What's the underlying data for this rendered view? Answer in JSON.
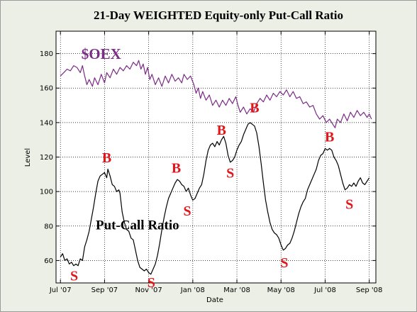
{
  "chart_data": {
    "type": "line",
    "title": "21-Day WEIGHTED Equity-only Put-Call Ratio",
    "xlabel": "Date",
    "ylabel": "Level",
    "ylim": [
      47,
      193
    ],
    "yticks": [
      60,
      80,
      100,
      120,
      140,
      160,
      180
    ],
    "grid": true,
    "xticks": [
      {
        "label": "Jul '07",
        "t": 0
      },
      {
        "label": "Sep '07",
        "t": 2
      },
      {
        "label": "Nov '07",
        "t": 4
      },
      {
        "label": "Jan '08",
        "t": 6
      },
      {
        "label": "Mar '08",
        "t": 8
      },
      {
        "label": "May '08",
        "t": 10
      },
      {
        "label": "Jul '08",
        "t": 12
      },
      {
        "label": "Sep '08",
        "t": 14
      }
    ],
    "xlim": [
      -0.2,
      14.3
    ],
    "series": [
      {
        "name": "$OEX",
        "color": "#7b2b86",
        "points": [
          [
            0,
            167
          ],
          [
            0.15,
            169
          ],
          [
            0.3,
            171
          ],
          [
            0.45,
            170
          ],
          [
            0.6,
            173
          ],
          [
            0.75,
            172
          ],
          [
            0.9,
            169
          ],
          [
            1.0,
            173
          ],
          [
            1.1,
            167
          ],
          [
            1.2,
            162
          ],
          [
            1.3,
            165
          ],
          [
            1.45,
            161
          ],
          [
            1.55,
            166
          ],
          [
            1.7,
            162
          ],
          [
            1.85,
            168
          ],
          [
            2.0,
            163
          ],
          [
            2.1,
            169
          ],
          [
            2.25,
            166
          ],
          [
            2.4,
            171
          ],
          [
            2.55,
            168
          ],
          [
            2.7,
            172
          ],
          [
            2.85,
            170
          ],
          [
            3.0,
            173
          ],
          [
            3.15,
            171
          ],
          [
            3.3,
            175
          ],
          [
            3.45,
            173
          ],
          [
            3.55,
            176
          ],
          [
            3.65,
            171
          ],
          [
            3.75,
            174
          ],
          [
            3.85,
            168
          ],
          [
            3.95,
            172
          ],
          [
            4.05,
            165
          ],
          [
            4.15,
            168
          ],
          [
            4.3,
            162
          ],
          [
            4.45,
            166
          ],
          [
            4.6,
            161
          ],
          [
            4.75,
            167
          ],
          [
            4.9,
            163
          ],
          [
            5.05,
            168
          ],
          [
            5.2,
            164
          ],
          [
            5.35,
            166
          ],
          [
            5.5,
            163
          ],
          [
            5.6,
            168
          ],
          [
            5.75,
            165
          ],
          [
            5.9,
            167
          ],
          [
            6.05,
            162
          ],
          [
            6.15,
            157
          ],
          [
            6.25,
            160
          ],
          [
            6.35,
            154
          ],
          [
            6.45,
            158
          ],
          [
            6.6,
            153
          ],
          [
            6.75,
            156
          ],
          [
            6.9,
            150
          ],
          [
            7.05,
            153
          ],
          [
            7.2,
            149
          ],
          [
            7.35,
            153
          ],
          [
            7.5,
            150
          ],
          [
            7.65,
            154
          ],
          [
            7.8,
            151
          ],
          [
            7.95,
            155
          ],
          [
            8.05,
            150
          ],
          [
            8.15,
            146
          ],
          [
            8.3,
            149
          ],
          [
            8.45,
            145
          ],
          [
            8.6,
            148
          ],
          [
            8.75,
            146
          ],
          [
            8.9,
            151
          ],
          [
            9.05,
            154
          ],
          [
            9.2,
            152
          ],
          [
            9.35,
            156
          ],
          [
            9.5,
            153
          ],
          [
            9.65,
            157
          ],
          [
            9.8,
            155
          ],
          [
            9.95,
            158
          ],
          [
            10.1,
            156
          ],
          [
            10.25,
            159
          ],
          [
            10.4,
            155
          ],
          [
            10.55,
            158
          ],
          [
            10.7,
            154
          ],
          [
            10.85,
            155
          ],
          [
            11.0,
            151
          ],
          [
            11.15,
            152
          ],
          [
            11.3,
            149
          ],
          [
            11.45,
            150
          ],
          [
            11.6,
            145
          ],
          [
            11.75,
            142
          ],
          [
            11.9,
            144
          ],
          [
            12.05,
            140
          ],
          [
            12.2,
            142
          ],
          [
            12.35,
            139
          ],
          [
            12.45,
            137
          ],
          [
            12.55,
            142
          ],
          [
            12.7,
            140
          ],
          [
            12.85,
            145
          ],
          [
            13.0,
            141
          ],
          [
            13.15,
            146
          ],
          [
            13.3,
            143
          ],
          [
            13.45,
            147
          ],
          [
            13.6,
            144
          ],
          [
            13.75,
            146
          ],
          [
            13.9,
            143
          ],
          [
            14.0,
            145
          ],
          [
            14.1,
            142
          ]
        ]
      },
      {
        "name": "Put-Call Ratio",
        "color": "#000000",
        "points": [
          [
            0,
            62
          ],
          [
            0.1,
            64
          ],
          [
            0.2,
            60
          ],
          [
            0.3,
            61
          ],
          [
            0.4,
            58
          ],
          [
            0.5,
            59
          ],
          [
            0.6,
            57
          ],
          [
            0.7,
            58
          ],
          [
            0.8,
            57
          ],
          [
            0.9,
            61
          ],
          [
            1.0,
            60
          ],
          [
            1.1,
            68
          ],
          [
            1.2,
            72
          ],
          [
            1.3,
            77
          ],
          [
            1.4,
            84
          ],
          [
            1.5,
            91
          ],
          [
            1.6,
            99
          ],
          [
            1.7,
            106
          ],
          [
            1.8,
            109
          ],
          [
            1.9,
            110
          ],
          [
            2.0,
            111
          ],
          [
            2.1,
            108
          ],
          [
            2.15,
            113
          ],
          [
            2.25,
            109
          ],
          [
            2.35,
            104
          ],
          [
            2.45,
            103
          ],
          [
            2.55,
            100
          ],
          [
            2.65,
            101
          ],
          [
            2.7,
            99
          ],
          [
            2.8,
            88
          ],
          [
            2.9,
            82
          ],
          [
            3.0,
            78
          ],
          [
            3.1,
            77
          ],
          [
            3.2,
            73
          ],
          [
            3.3,
            72
          ],
          [
            3.4,
            66
          ],
          [
            3.5,
            60
          ],
          [
            3.6,
            56
          ],
          [
            3.7,
            55
          ],
          [
            3.8,
            54
          ],
          [
            3.9,
            55
          ],
          [
            4.0,
            53
          ],
          [
            4.1,
            52
          ],
          [
            4.2,
            55
          ],
          [
            4.3,
            58
          ],
          [
            4.4,
            63
          ],
          [
            4.5,
            70
          ],
          [
            4.6,
            78
          ],
          [
            4.7,
            85
          ],
          [
            4.8,
            91
          ],
          [
            4.9,
            96
          ],
          [
            5.0,
            99
          ],
          [
            5.1,
            102
          ],
          [
            5.2,
            105
          ],
          [
            5.3,
            107
          ],
          [
            5.4,
            106
          ],
          [
            5.5,
            104
          ],
          [
            5.6,
            103
          ],
          [
            5.7,
            100
          ],
          [
            5.8,
            102
          ],
          [
            5.9,
            98
          ],
          [
            6.0,
            95
          ],
          [
            6.1,
            96
          ],
          [
            6.2,
            99
          ],
          [
            6.3,
            102
          ],
          [
            6.4,
            104
          ],
          [
            6.5,
            110
          ],
          [
            6.6,
            118
          ],
          [
            6.7,
            124
          ],
          [
            6.8,
            127
          ],
          [
            6.9,
            128
          ],
          [
            7.0,
            126
          ],
          [
            7.1,
            129
          ],
          [
            7.2,
            127
          ],
          [
            7.3,
            130
          ],
          [
            7.4,
            132
          ],
          [
            7.5,
            128
          ],
          [
            7.6,
            121
          ],
          [
            7.7,
            117
          ],
          [
            7.8,
            118
          ],
          [
            7.9,
            120
          ],
          [
            8.0,
            124
          ],
          [
            8.1,
            127
          ],
          [
            8.2,
            129
          ],
          [
            8.3,
            133
          ],
          [
            8.4,
            136
          ],
          [
            8.5,
            139
          ],
          [
            8.6,
            140
          ],
          [
            8.7,
            139
          ],
          [
            8.8,
            138
          ],
          [
            8.9,
            134
          ],
          [
            9.0,
            126
          ],
          [
            9.1,
            116
          ],
          [
            9.2,
            105
          ],
          [
            9.3,
            95
          ],
          [
            9.4,
            88
          ],
          [
            9.5,
            82
          ],
          [
            9.6,
            78
          ],
          [
            9.7,
            76
          ],
          [
            9.8,
            75
          ],
          [
            9.9,
            73
          ],
          [
            10.0,
            69
          ],
          [
            10.1,
            66
          ],
          [
            10.2,
            67
          ],
          [
            10.3,
            69
          ],
          [
            10.4,
            70
          ],
          [
            10.5,
            73
          ],
          [
            10.6,
            77
          ],
          [
            10.7,
            82
          ],
          [
            10.8,
            87
          ],
          [
            10.9,
            91
          ],
          [
            11.0,
            94
          ],
          [
            11.1,
            96
          ],
          [
            11.2,
            101
          ],
          [
            11.3,
            104
          ],
          [
            11.4,
            107
          ],
          [
            11.5,
            110
          ],
          [
            11.6,
            113
          ],
          [
            11.7,
            118
          ],
          [
            11.8,
            121
          ],
          [
            11.9,
            122
          ],
          [
            12.0,
            125
          ],
          [
            12.1,
            124
          ],
          [
            12.2,
            125
          ],
          [
            12.3,
            124
          ],
          [
            12.4,
            120
          ],
          [
            12.5,
            118
          ],
          [
            12.6,
            115
          ],
          [
            12.7,
            110
          ],
          [
            12.8,
            105
          ],
          [
            12.9,
            101
          ],
          [
            13.0,
            102
          ],
          [
            13.1,
            104
          ],
          [
            13.2,
            103
          ],
          [
            13.3,
            105
          ],
          [
            13.4,
            103
          ],
          [
            13.5,
            106
          ],
          [
            13.6,
            108
          ],
          [
            13.7,
            105
          ],
          [
            13.8,
            104
          ],
          [
            13.9,
            106
          ],
          [
            14.0,
            108
          ]
        ]
      }
    ],
    "annotations": [
      {
        "text": "S",
        "t": 0.62,
        "y": 48.5
      },
      {
        "text": "B",
        "t": 2.1,
        "y": 117
      },
      {
        "text": "S",
        "t": 4.12,
        "y": 44.5
      },
      {
        "text": "B",
        "t": 5.25,
        "y": 111
      },
      {
        "text": "S",
        "t": 5.75,
        "y": 86
      },
      {
        "text": "B",
        "t": 7.3,
        "y": 133
      },
      {
        "text": "S",
        "t": 7.7,
        "y": 108
      },
      {
        "text": "B",
        "t": 8.8,
        "y": 146
      },
      {
        "text": "S",
        "t": 10.15,
        "y": 56
      },
      {
        "text": "B",
        "t": 12.2,
        "y": 129
      },
      {
        "text": "S",
        "t": 13.1,
        "y": 90
      }
    ],
    "series_labels": [
      {
        "text": "$OEX",
        "t": 0.95,
        "y": 177,
        "color": "#7b2b86",
        "size": 21
      },
      {
        "text": "Put-Call Ratio",
        "t": 1.6,
        "y": 78,
        "color": "#000000",
        "size": 19
      }
    ]
  }
}
